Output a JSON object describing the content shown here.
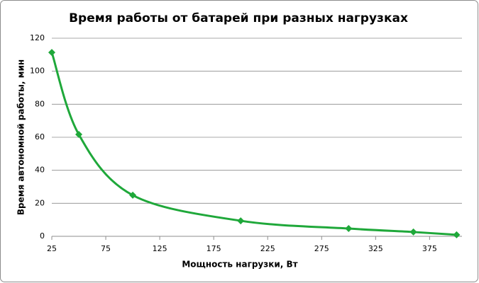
{
  "chart_data": {
    "type": "line",
    "title": "Время работы от батарей при разных нагрузках",
    "x_label": "Мощность нагрузки, Вт",
    "y_label": "Время автономной работы, мин",
    "x": [
      25,
      50,
      100,
      200,
      300,
      360,
      400
    ],
    "series": [
      {
        "name": "Время работы",
        "color": "#1fa83a",
        "values": [
          111.4,
          61.7,
          24.9,
          9.4,
          4.7,
          2.6,
          0.9
        ]
      }
    ],
    "xlim": [
      25,
      405
    ],
    "xticks": [
      25,
      75,
      125,
      175,
      225,
      275,
      325,
      375
    ],
    "ylim": [
      0,
      120
    ],
    "yticks": [
      0,
      20,
      40,
      60,
      80,
      100,
      120
    ],
    "grid": true,
    "smooth": true
  }
}
